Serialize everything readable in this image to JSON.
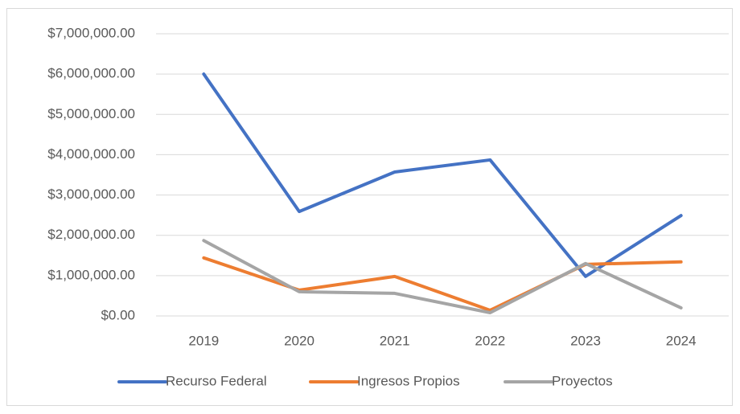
{
  "chart_data": {
    "type": "line",
    "categories": [
      "2019",
      "2020",
      "2021",
      "2022",
      "2023",
      "2024"
    ],
    "series": [
      {
        "name": "Recurso Federal",
        "color": "#4472c4",
        "values": [
          6000000,
          2590000,
          3570000,
          3870000,
          980000,
          2490000
        ]
      },
      {
        "name": "Ingresos Propios",
        "color": "#ed7d31",
        "values": [
          1440000,
          640000,
          980000,
          140000,
          1280000,
          1340000
        ]
      },
      {
        "name": "Proyectos",
        "color": "#a5a5a5",
        "values": [
          1870000,
          600000,
          560000,
          80000,
          1300000,
          200000
        ]
      }
    ],
    "ylim": [
      0,
      7000000
    ],
    "yticks": [
      {
        "value": 0,
        "label": "$0.00"
      },
      {
        "value": 1000000,
        "label": "$1,000,000.00"
      },
      {
        "value": 2000000,
        "label": "$2,000,000.00"
      },
      {
        "value": 3000000,
        "label": "$3,000,000.00"
      },
      {
        "value": 4000000,
        "label": "$4,000,000.00"
      },
      {
        "value": 5000000,
        "label": "$5,000,000.00"
      },
      {
        "value": 6000000,
        "label": "$6,000,000.00"
      },
      {
        "value": 7000000,
        "label": "$7,000,000.00"
      }
    ],
    "grid": true,
    "legend": "bottom"
  }
}
